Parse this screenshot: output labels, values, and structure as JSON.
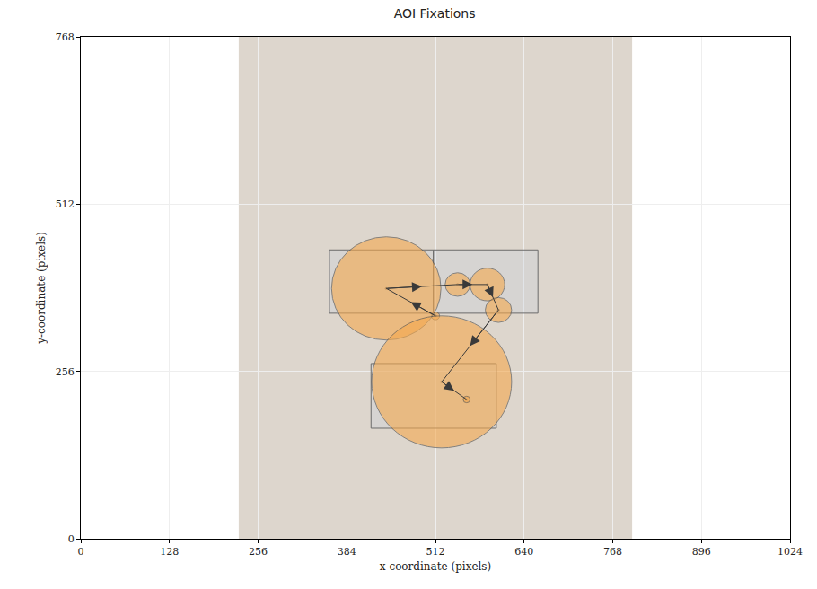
{
  "chart_data": {
    "type": "scatter",
    "title": "AOI Fixations",
    "x_label": "x-coordinate (pixels)",
    "y_label": "y-coordinate (pixels)",
    "xlim": [
      0,
      1024
    ],
    "ylim": [
      0,
      768
    ],
    "xticks": [
      0,
      128,
      256,
      384,
      512,
      640,
      768,
      896,
      1024
    ],
    "yticks": [
      0,
      256,
      512,
      768
    ],
    "grid": true,
    "image_extent": {
      "x": [
        228,
        796
      ],
      "y": [
        0,
        768
      ]
    },
    "aois": [
      {
        "x": [
          359,
          509
        ],
        "y": [
          345,
          442
        ]
      },
      {
        "x": [
          509,
          660
        ],
        "y": [
          345,
          442
        ]
      },
      {
        "x": [
          419,
          600
        ],
        "y": [
          169,
          268
        ]
      }
    ],
    "fixations": {
      "x": [
        512,
        441,
        544,
        587,
        603,
        521,
        557
      ],
      "y": [
        341,
        383,
        389,
        389,
        350,
        240,
        213
      ],
      "radius": [
        6,
        79,
        18,
        25,
        19,
        101,
        5
      ]
    },
    "color": "#f5a94e",
    "marker": "circle"
  }
}
